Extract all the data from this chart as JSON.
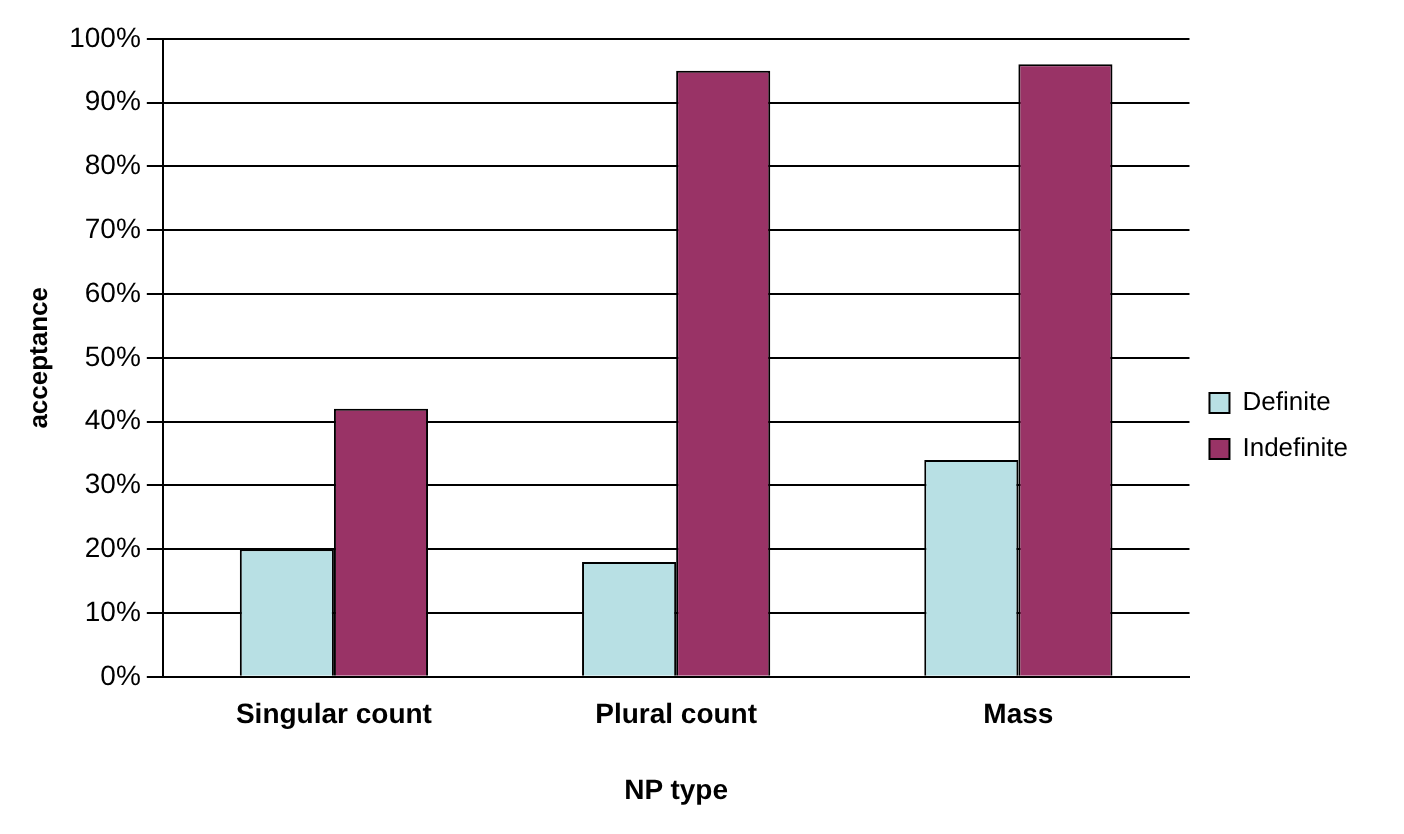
{
  "chart_data": {
    "type": "bar",
    "xlabel": "NP type",
    "ylabel": "acceptance",
    "categories": [
      "Singular count",
      "Plural count",
      "Mass"
    ],
    "series": [
      {
        "name": "Definite",
        "color": "#b8e0e4",
        "values": [
          20,
          18,
          34
        ]
      },
      {
        "name": "Indefinite",
        "color": "#993366",
        "values": [
          42,
          95,
          96
        ]
      }
    ],
    "ylim": [
      0,
      100
    ],
    "yticks": [
      {
        "value": 0,
        "label": "0%"
      },
      {
        "value": 10,
        "label": "10%"
      },
      {
        "value": 20,
        "label": "20%"
      },
      {
        "value": 30,
        "label": "30%"
      },
      {
        "value": 40,
        "label": "40%"
      },
      {
        "value": 50,
        "label": "50%"
      },
      {
        "value": 60,
        "label": "60%"
      },
      {
        "value": 70,
        "label": "70%"
      },
      {
        "value": 80,
        "label": "80%"
      },
      {
        "value": 90,
        "label": "90%"
      },
      {
        "value": 100,
        "label": "100%"
      }
    ],
    "grid": "y",
    "legend": "right"
  }
}
